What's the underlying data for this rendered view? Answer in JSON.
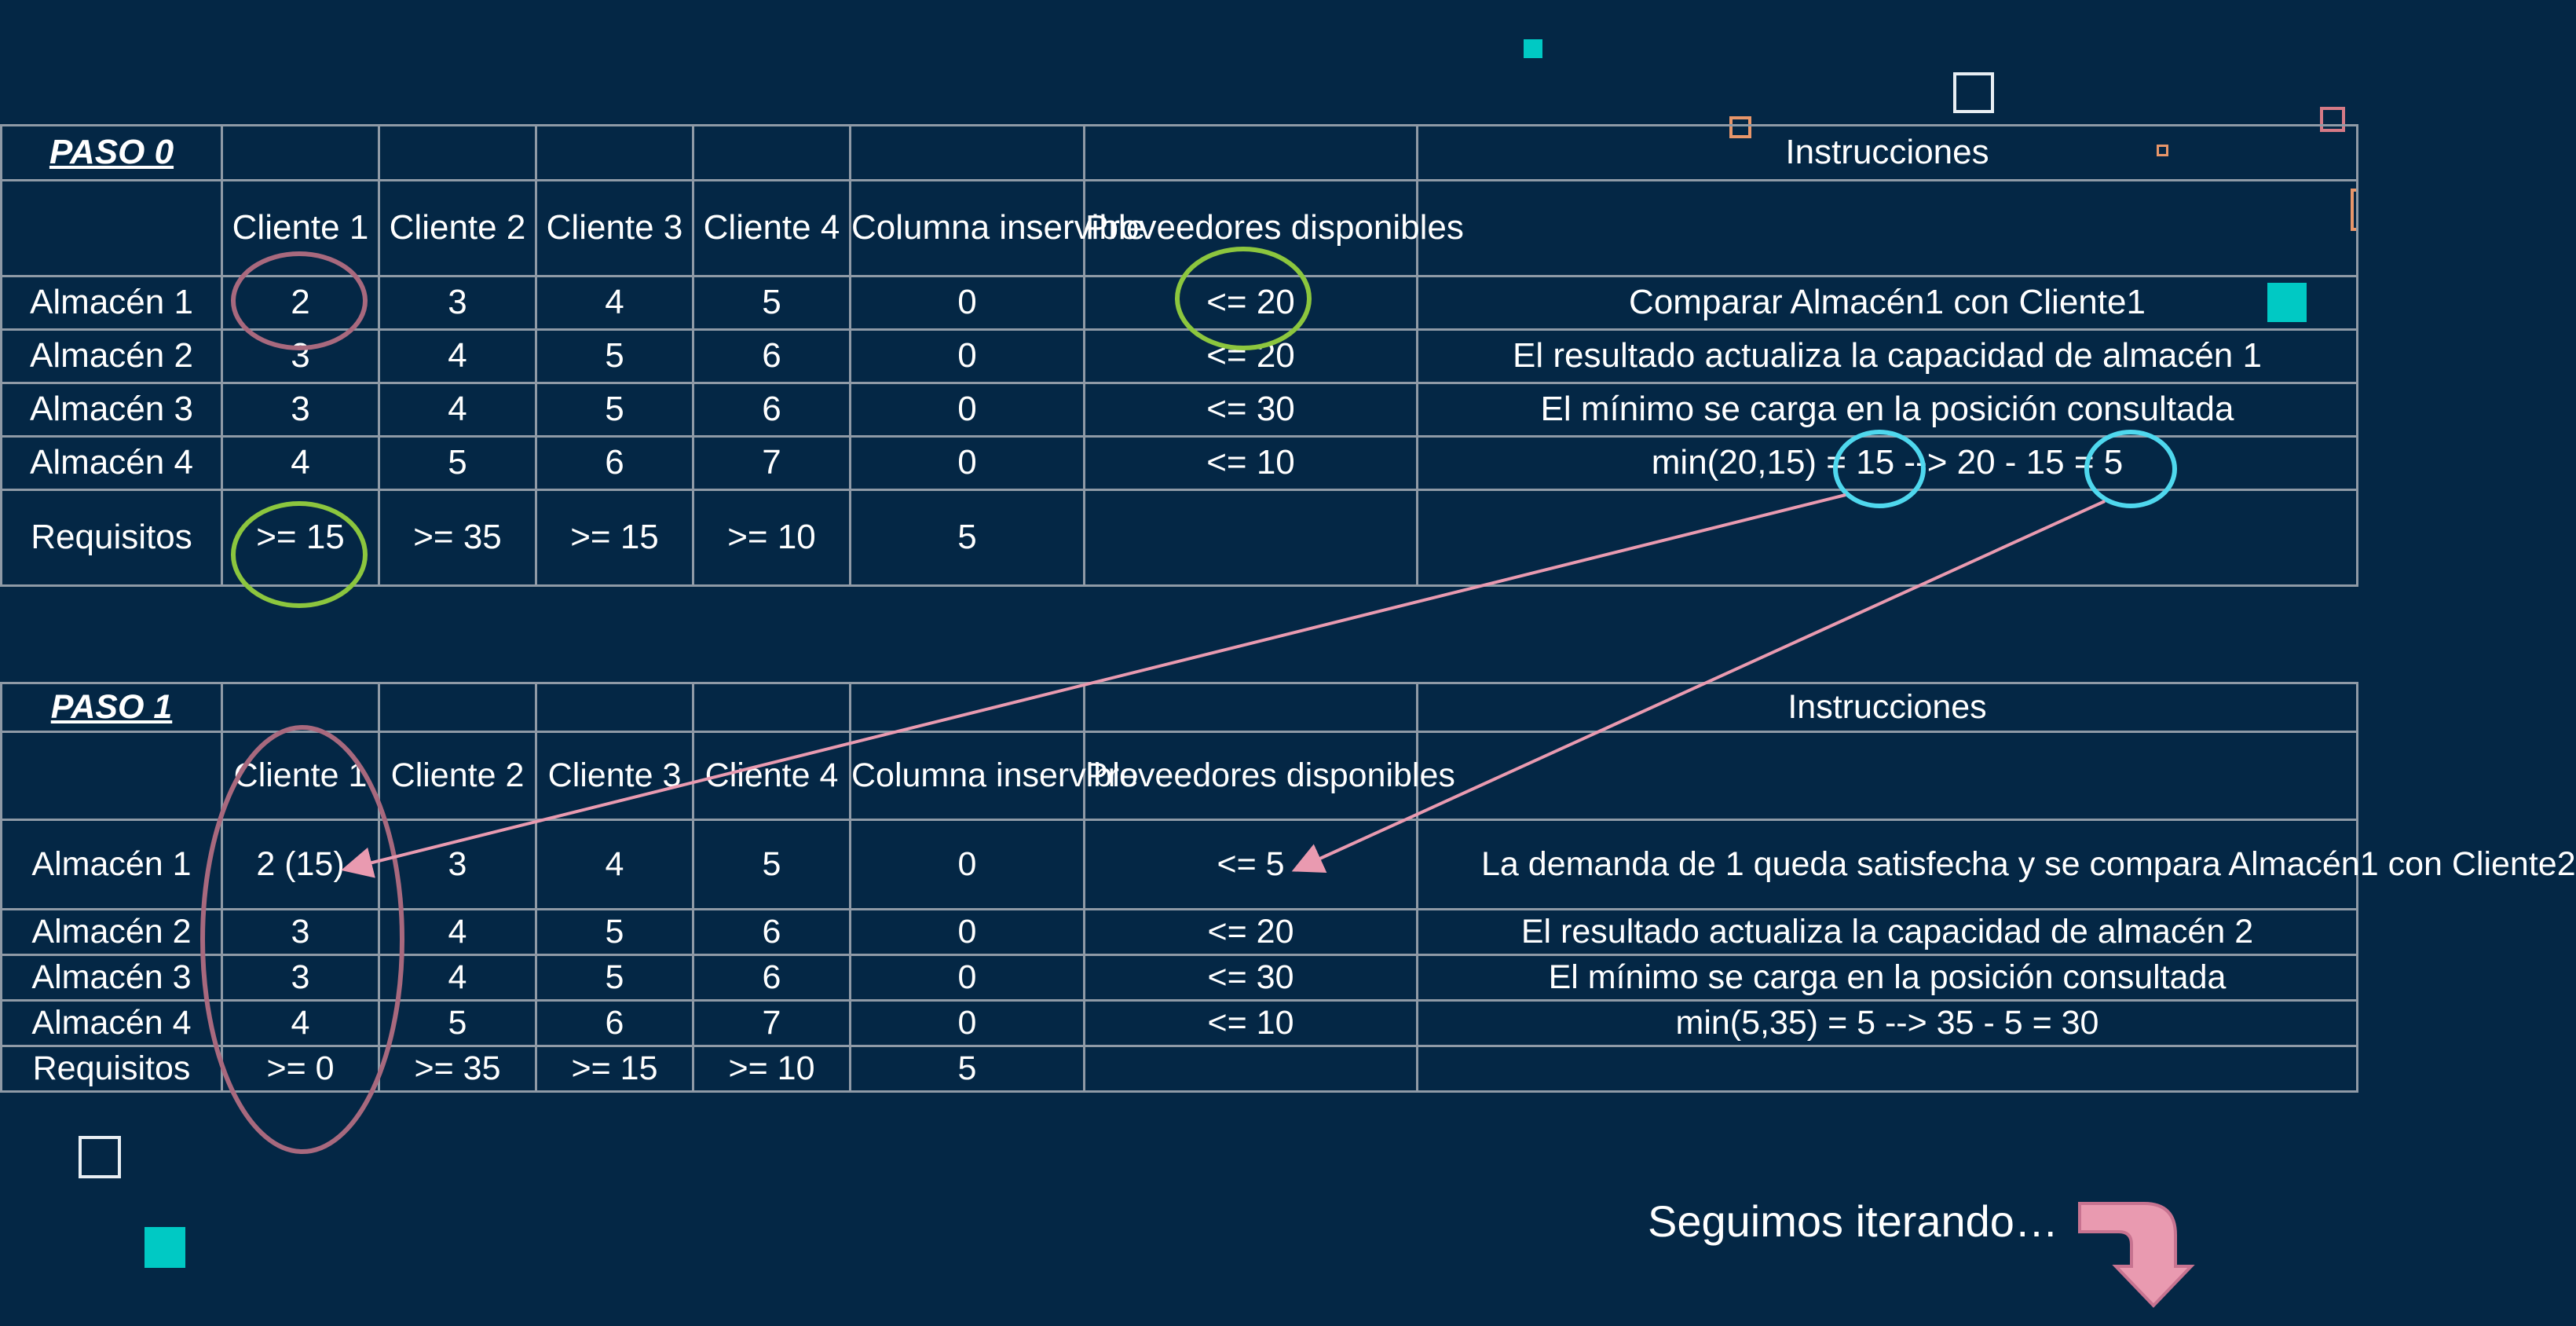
{
  "step0": {
    "title": "PASO 0",
    "instructions_header": "Instrucciones",
    "col_headers": [
      "Cliente 1",
      "Cliente 2",
      "Cliente 3",
      "Cliente 4",
      "Columna inservible",
      "Proveedores disponibles"
    ],
    "rows": [
      {
        "label": "Almacén 1",
        "cells": [
          "2",
          "3",
          "4",
          "5",
          "0"
        ],
        "supply": "<= 20",
        "instruction": "Comparar Almacén1 con Cliente1"
      },
      {
        "label": "Almacén 2",
        "cells": [
          "3",
          "4",
          "5",
          "6",
          "0"
        ],
        "supply": "<= 20",
        "instruction": "El resultado actualiza la capacidad de almacén 1"
      },
      {
        "label": "Almacén 3",
        "cells": [
          "3",
          "4",
          "5",
          "6",
          "0"
        ],
        "supply": "<= 30",
        "instruction": "El mínimo se carga en la posición consultada"
      },
      {
        "label": "Almacén 4",
        "cells": [
          "4",
          "5",
          "6",
          "7",
          "0"
        ],
        "supply": "<= 10",
        "instruction": "min(20,15) = 15 --> 20 - 15 = 5"
      }
    ],
    "requirements": {
      "label": "Requisitos",
      "cells": [
        ">= 15",
        ">= 35",
        ">= 15",
        ">= 10",
        "5"
      ]
    }
  },
  "step1": {
    "title": "PASO 1",
    "instructions_header": "Instrucciones",
    "col_headers": [
      "Cliente 1",
      "Cliente 2",
      "Cliente 3",
      "Cliente 4",
      "Columna inservible",
      "Proveedores disponibles"
    ],
    "rows": [
      {
        "label": "Almacén 1",
        "cells": [
          "2 (15)",
          "3",
          "4",
          "5",
          "0"
        ],
        "supply": "<= 5",
        "instruction": "La demanda de 1 queda satisfecha y se compara Almacén1 con Cliente2"
      },
      {
        "label": "Almacén 2",
        "cells": [
          "3",
          "4",
          "5",
          "6",
          "0"
        ],
        "supply": "<= 20",
        "instruction": "El resultado actualiza la capacidad de almacén 2"
      },
      {
        "label": "Almacén 3",
        "cells": [
          "3",
          "4",
          "5",
          "6",
          "0"
        ],
        "supply": "<= 30",
        "instruction": "El mínimo se carga en la posición consultada"
      },
      {
        "label": "Almacén 4",
        "cells": [
          "4",
          "5",
          "6",
          "7",
          "0"
        ],
        "supply": "<= 10",
        "instruction": "min(5,35) = 5 --> 35 - 5 = 30"
      }
    ],
    "requirements": {
      "label": "Requisitos",
      "cells": [
        ">= 0",
        ">= 35",
        ">= 15",
        ">= 10",
        "5"
      ]
    }
  },
  "footer": {
    "continue_text": "Seguimos iterando…"
  },
  "colors": {
    "background": "#042745",
    "grid": "#8f9aa6",
    "circle_mauve": "#a8697e",
    "circle_green": "#8cc63e",
    "circle_cyan": "#4fd8ee",
    "arrow_pink": "#e99ab0",
    "accent_teal": "#00c9c4"
  },
  "icons": {
    "continue_arrow": "curved-down-arrow-icon"
  }
}
